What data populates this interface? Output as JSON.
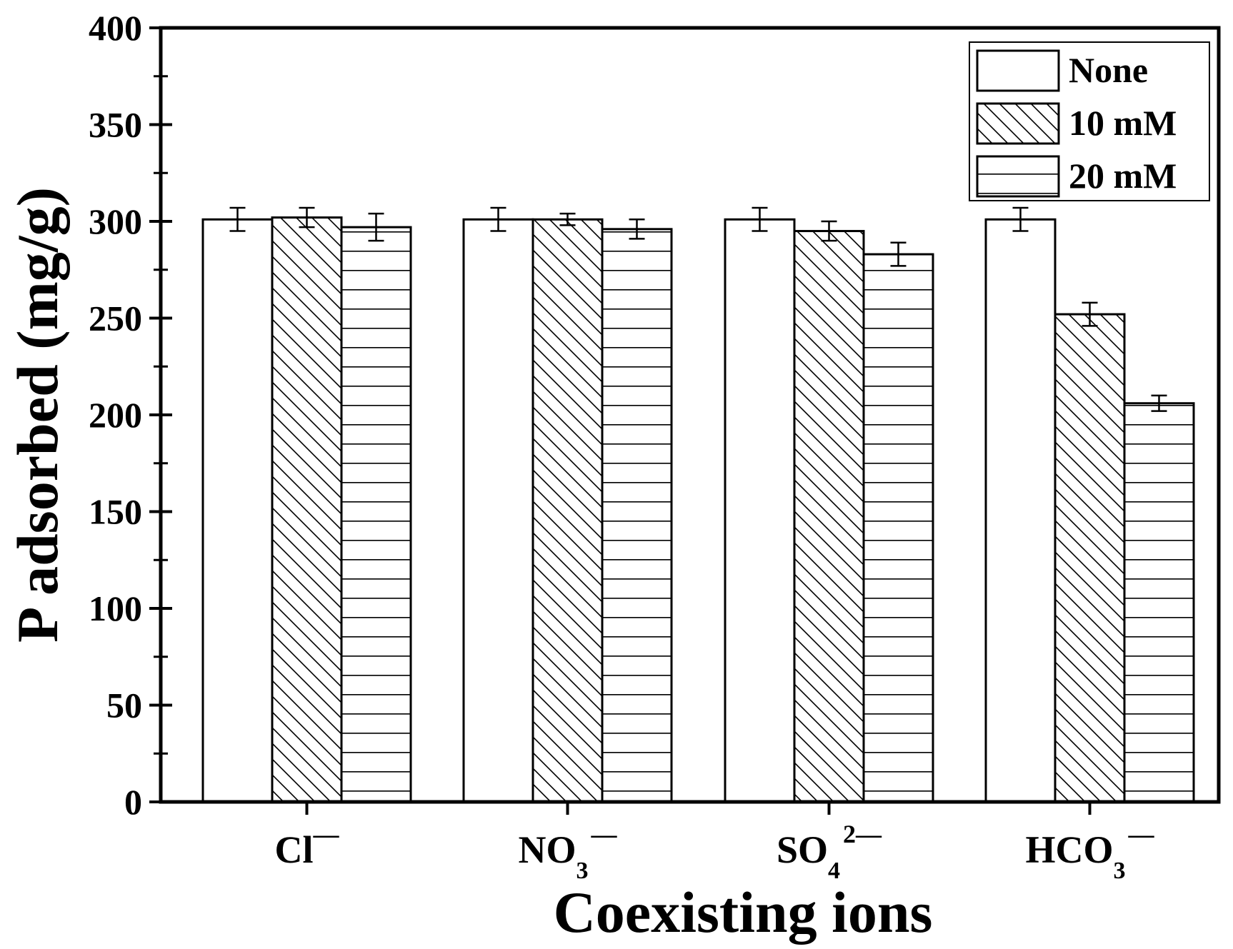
{
  "chart_data": {
    "type": "bar",
    "title": "",
    "xlabel": "Coexisting ions",
    "ylabel": "P adsorbed (mg/g)",
    "ylim": [
      0,
      400
    ],
    "yticks": [
      "0",
      "50",
      "100",
      "150",
      "200",
      "250",
      "300",
      "350",
      "400"
    ],
    "categories": [
      {
        "base": "Cl",
        "sub": "",
        "sup": "—"
      },
      {
        "base": "NO",
        "sub": "3",
        "sup": "—"
      },
      {
        "base": "SO",
        "sub": "4",
        "sup": "2—"
      },
      {
        "base": "HCO",
        "sub": "3",
        "sup": "—"
      }
    ],
    "series": [
      {
        "name": "None",
        "pattern": "none",
        "values": [
          301,
          301,
          301,
          301
        ],
        "errors": [
          6,
          6,
          6,
          6
        ]
      },
      {
        "name": "10 mM",
        "pattern": "diagonal",
        "values": [
          302,
          301,
          295,
          252
        ],
        "errors": [
          5,
          3,
          5,
          6
        ]
      },
      {
        "name": "20 mM",
        "pattern": "horizontal",
        "values": [
          297,
          296,
          283,
          206
        ],
        "errors": [
          7,
          5,
          6,
          4
        ]
      }
    ],
    "legend_position": "top-right",
    "grid": false
  }
}
